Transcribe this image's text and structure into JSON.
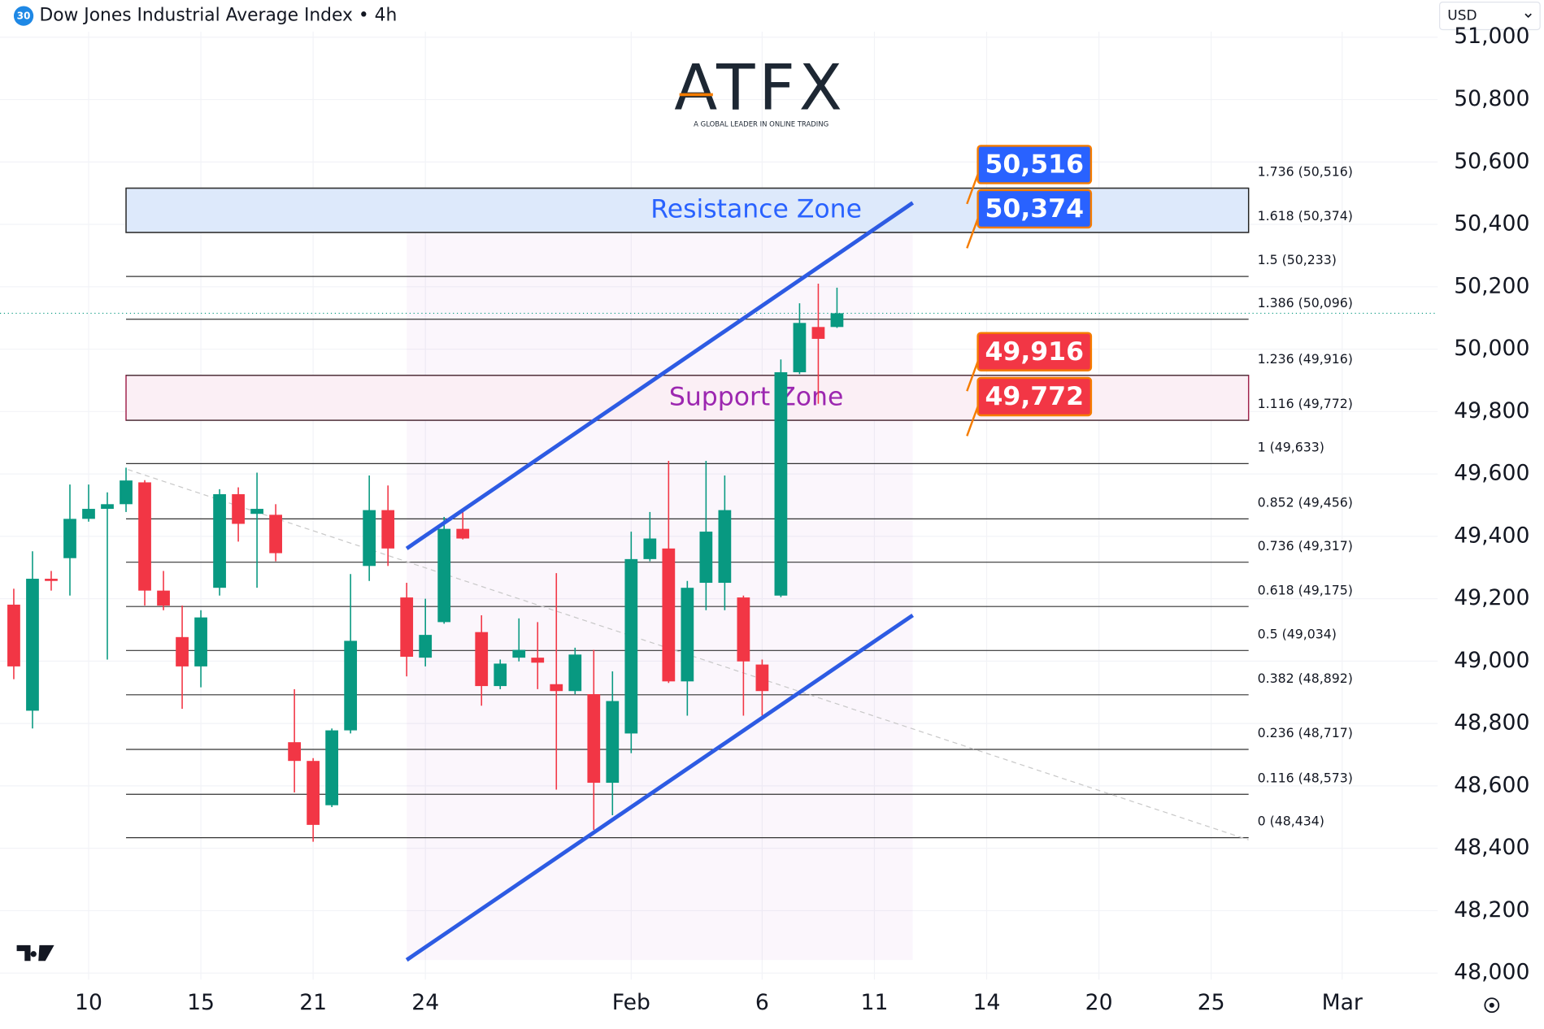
{
  "chart_data": {
    "type": "candlestick",
    "title": "Dow Jones Industrial Average Index • 4h",
    "symbol_badge": "30",
    "currency": "USD",
    "watermark": {
      "brand": "ATFX",
      "tagline": "A GLOBAL LEADER IN ONLINE TRADING"
    },
    "up_color": "#089981",
    "down_color": "#f23645",
    "open": [
      49181,
      48841,
      49264,
      49330,
      49456,
      49488,
      49503,
      49573,
      49226,
      49077,
      48983,
      49235,
      49535,
      49472,
      49469,
      48740,
      48680,
      48538,
      48778,
      49305,
      49484,
      49204,
      49011,
      49125,
      49424,
      49093,
      48920,
      49011,
      49011,
      48926,
      48904,
      48894,
      48610,
      48768,
      49327,
      49361,
      48935,
      49251,
      49251,
      49204,
      48989,
      49210,
      49926,
      50071,
      50071
    ],
    "high": [
      49232,
      49352,
      49289,
      49566,
      49566,
      49541,
      49620,
      49580,
      49289,
      49178,
      49163,
      49551,
      49557,
      49604,
      49503,
      48910,
      48689,
      48784,
      49279,
      49595,
      49563,
      49251,
      49200,
      49462,
      49478,
      49147,
      49005,
      49137,
      49125,
      49282,
      49043,
      49036,
      48967,
      49415,
      49478,
      49642,
      49257,
      49642,
      49595,
      49210,
      49005,
      49967,
      50147,
      50210,
      50197
    ],
    "low": [
      48942,
      48784,
      49226,
      49210,
      49447,
      49005,
      49478,
      49178,
      49163,
      48847,
      48916,
      49210,
      49383,
      49235,
      49320,
      48579,
      48421,
      48532,
      48768,
      49257,
      49305,
      48951,
      48983,
      49120,
      49390,
      48857,
      48910,
      48999,
      48910,
      48588,
      48894,
      48459,
      48506,
      48705,
      49320,
      48930,
      48825,
      49163,
      49163,
      48825,
      48825,
      49205,
      49920,
      49825,
      50068
    ],
    "close": [
      48983,
      49264,
      49257,
      49456,
      49488,
      49503,
      49579,
      49226,
      49178,
      48983,
      49140,
      49535,
      49440,
      49488,
      49346,
      48680,
      48475,
      48778,
      49065,
      49484,
      49361,
      49014,
      49084,
      49424,
      49393,
      48920,
      48992,
      49036,
      48995,
      48904,
      49021,
      48610,
      48872,
      49327,
      49393,
      48935,
      49235,
      49415,
      49484,
      48999,
      48904,
      49926,
      50084,
      50033,
      50115
    ],
    "xlim": [
      -0.737,
      76.105
    ],
    "xticks": [
      {
        "value": 4,
        "label": "10"
      },
      {
        "value": 10,
        "label": "15"
      },
      {
        "value": 16,
        "label": "21"
      },
      {
        "value": 22,
        "label": "24"
      },
      {
        "value": 33,
        "label": "Feb"
      },
      {
        "value": 40,
        "label": "6"
      },
      {
        "value": 46,
        "label": "11"
      },
      {
        "value": 52,
        "label": "14"
      },
      {
        "value": 58,
        "label": "20"
      },
      {
        "value": 64,
        "label": "25"
      },
      {
        "value": 71,
        "label": "Mar"
      }
    ],
    "ylim": [
      47979,
      51024
    ],
    "yticks": [
      {
        "value": 48000,
        "label": "48,000"
      },
      {
        "value": 48200,
        "label": "48,200"
      },
      {
        "value": 48400,
        "label": "48,400"
      },
      {
        "value": 48600,
        "label": "48,600"
      },
      {
        "value": 48800,
        "label": "48,800"
      },
      {
        "value": 49000,
        "label": "49,000"
      },
      {
        "value": 49200,
        "label": "49,200"
      },
      {
        "value": 49400,
        "label": "49,400"
      },
      {
        "value": 49600,
        "label": "49,600"
      },
      {
        "value": 49800,
        "label": "49,800"
      },
      {
        "value": 50000,
        "label": "50,000"
      },
      {
        "value": 50200,
        "label": "50,200"
      },
      {
        "value": 50400,
        "label": "50,400"
      },
      {
        "value": 50600,
        "label": "50,600"
      },
      {
        "value": 50800,
        "label": "50,800"
      },
      {
        "value": 51000,
        "label": "51,000"
      }
    ],
    "grid": true,
    "fib_levels": [
      {
        "value": 50516,
        "label": "1.736 (50,516)"
      },
      {
        "value": 50374,
        "label": "1.618 (50,374)"
      },
      {
        "value": 50233,
        "label": "1.5 (50,233)"
      },
      {
        "value": 50096,
        "label": "1.386 (50,096)"
      },
      {
        "value": 49916,
        "label": "1.236 (49,916)"
      },
      {
        "value": 49772,
        "label": "1.116 (49,772)"
      },
      {
        "value": 49633,
        "label": "1 (49,633)"
      },
      {
        "value": 49456,
        "label": "0.852 (49,456)"
      },
      {
        "value": 49317,
        "label": "0.736 (49,317)"
      },
      {
        "value": 49175,
        "label": "0.618 (49,175)"
      },
      {
        "value": 49034,
        "label": "0.5 (49,034)"
      },
      {
        "value": 48892,
        "label": "0.382 (48,892)"
      },
      {
        "value": 48717,
        "label": "0.236 (48,717)"
      },
      {
        "value": 48573,
        "label": "0.116 (48,573)"
      },
      {
        "value": 48434,
        "label": "0 (48,434)"
      }
    ],
    "zones": [
      {
        "name": "Resistance Zone",
        "range": [
          50374,
          50516
        ],
        "color": "#2962ff",
        "fill": "#dde9fb"
      },
      {
        "name": "Support Zone",
        "range": [
          49772,
          49916
        ],
        "color": "#9c27b0",
        "fill": "#fbeff5"
      }
    ],
    "price_tags": [
      {
        "value": 50516,
        "label": "50,516",
        "color": "#2962ff"
      },
      {
        "value": 50374,
        "label": "50,374",
        "color": "#2962ff"
      },
      {
        "value": 49916,
        "label": "49,916",
        "color": "#f23645"
      },
      {
        "value": 49772,
        "label": "49,772",
        "color": "#f23645"
      }
    ],
    "channel": {
      "color": "#2d5be3",
      "lines": [
        {
          "x": [
            21,
            48.05
          ],
          "y": [
            49361,
            50469
          ]
        },
        {
          "x": [
            21,
            48.05
          ],
          "y": [
            48042,
            49147
          ]
        }
      ]
    },
    "trend_line": {
      "x": [
        6.1,
        66
      ],
      "y": [
        49614,
        48427
      ]
    }
  }
}
